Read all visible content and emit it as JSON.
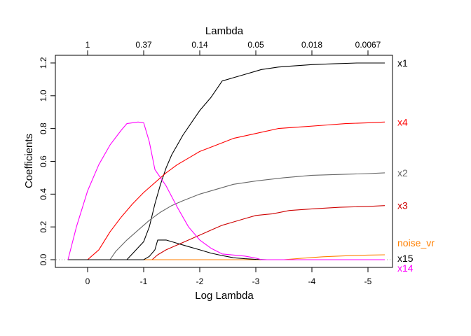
{
  "chart_data": {
    "type": "line",
    "title": "Lambda",
    "xlabel": "Log Lambda",
    "ylabel": "Coefficients",
    "xlim": [
      0.4,
      -5.3
    ],
    "ylim": [
      0,
      1.2
    ],
    "x_ticks": [
      0,
      -1,
      -2,
      -3,
      -4,
      -5
    ],
    "x_tick_labels": [
      "0",
      "-1",
      "-2",
      "-3",
      "-4",
      "-5"
    ],
    "y_ticks": [
      0,
      0.2,
      0.4,
      0.6,
      0.8,
      1.0,
      1.2
    ],
    "y_tick_labels": [
      "0.0",
      "0.2",
      "0.4",
      "0.6",
      "0.8",
      "1.0",
      "1.2"
    ],
    "top_axis": {
      "ticks": [
        0,
        -1,
        -2,
        -3,
        -4,
        -5
      ],
      "labels": [
        "1",
        "0.37",
        "0.14",
        "0.05",
        "0.018",
        "0.0067"
      ]
    },
    "zero_line": true,
    "series": [
      {
        "name": "x1",
        "color": "#000000",
        "x": [
          0.35,
          -0.7,
          -1.0,
          -1.1,
          -1.2,
          -1.3,
          -1.4,
          -1.5,
          -1.6,
          -1.7,
          -1.8,
          -1.9,
          -2.0,
          -2.1,
          -2.2,
          -2.3,
          -2.4,
          -2.6,
          -2.8,
          -3.0,
          -3.1,
          -3.2,
          -3.4,
          -3.6,
          -4.0,
          -4.4,
          -4.8,
          -5.3
        ],
        "y": [
          0,
          0,
          0.11,
          0.2,
          0.34,
          0.46,
          0.56,
          0.64,
          0.7,
          0.76,
          0.81,
          0.86,
          0.91,
          0.95,
          0.99,
          1.04,
          1.09,
          1.11,
          1.13,
          1.15,
          1.16,
          1.165,
          1.175,
          1.18,
          1.19,
          1.195,
          1.2,
          1.2
        ]
      },
      {
        "name": "x4",
        "color": "#ff0000",
        "x": [
          0.35,
          0.0,
          -0.2,
          -0.4,
          -0.6,
          -0.8,
          -1.0,
          -1.2,
          -1.4,
          -1.6,
          -1.8,
          -2.0,
          -2.3,
          -2.6,
          -3.0,
          -3.4,
          -3.8,
          -4.2,
          -4.6,
          -5.0,
          -5.3
        ],
        "y": [
          0,
          0,
          0.06,
          0.17,
          0.26,
          0.34,
          0.41,
          0.47,
          0.53,
          0.58,
          0.62,
          0.66,
          0.7,
          0.74,
          0.77,
          0.8,
          0.81,
          0.82,
          0.83,
          0.835,
          0.84
        ]
      },
      {
        "name": "x2",
        "color": "#666666",
        "x": [
          0.35,
          -0.4,
          -0.5,
          -0.7,
          -0.9,
          -1.1,
          -1.3,
          -1.5,
          -1.7,
          -2.0,
          -2.3,
          -2.6,
          -3.0,
          -3.5,
          -4.0,
          -4.5,
          -5.0,
          -5.3
        ],
        "y": [
          0,
          0,
          0.05,
          0.12,
          0.18,
          0.24,
          0.29,
          0.33,
          0.36,
          0.4,
          0.43,
          0.46,
          0.48,
          0.5,
          0.515,
          0.52,
          0.525,
          0.53
        ]
      },
      {
        "name": "x3",
        "color": "#cd0000",
        "x": [
          0.35,
          -1.15,
          -1.25,
          -1.4,
          -1.6,
          -1.8,
          -2.0,
          -2.2,
          -2.4,
          -2.6,
          -2.8,
          -3.0,
          -3.3,
          -3.6,
          -4.0,
          -4.5,
          -5.0,
          -5.3
        ],
        "y": [
          0,
          0,
          0.03,
          0.06,
          0.09,
          0.12,
          0.15,
          0.18,
          0.21,
          0.23,
          0.25,
          0.27,
          0.28,
          0.3,
          0.31,
          0.32,
          0.325,
          0.33
        ]
      },
      {
        "name": "noise_vr",
        "color": "#ff7f00",
        "x": [
          0.35,
          -3.5,
          -3.8,
          -4.2,
          -4.6,
          -5.0,
          -5.3
        ],
        "y": [
          0,
          0,
          0.008,
          0.018,
          0.024,
          0.028,
          0.03
        ]
      },
      {
        "name": "x15",
        "color": "#000000",
        "x": [
          0.35,
          -1.0,
          -1.1,
          -1.2,
          -1.25,
          -1.4,
          -1.6,
          -1.8,
          -2.0,
          -2.2,
          -2.4,
          -2.6,
          -2.8,
          -3.0,
          -3.2,
          -5.3
        ],
        "y": [
          0,
          0,
          0.02,
          0.06,
          0.12,
          0.12,
          0.1,
          0.08,
          0.06,
          0.04,
          0.025,
          0.012,
          0.006,
          0.002,
          0,
          0
        ]
      },
      {
        "name": "x14",
        "color": "#ff00ff",
        "x": [
          0.35,
          0.2,
          0.0,
          -0.2,
          -0.4,
          -0.6,
          -0.7,
          -0.9,
          -1.0,
          -1.1,
          -1.2,
          -1.4,
          -1.6,
          -1.8,
          -2.0,
          -2.2,
          -2.4,
          -2.8,
          -3.0,
          -3.1,
          -5.3
        ],
        "y": [
          0,
          0.2,
          0.42,
          0.58,
          0.7,
          0.79,
          0.83,
          0.84,
          0.835,
          0.72,
          0.55,
          0.45,
          0.32,
          0.2,
          0.12,
          0.07,
          0.035,
          0.022,
          0.01,
          0,
          0
        ]
      }
    ]
  }
}
